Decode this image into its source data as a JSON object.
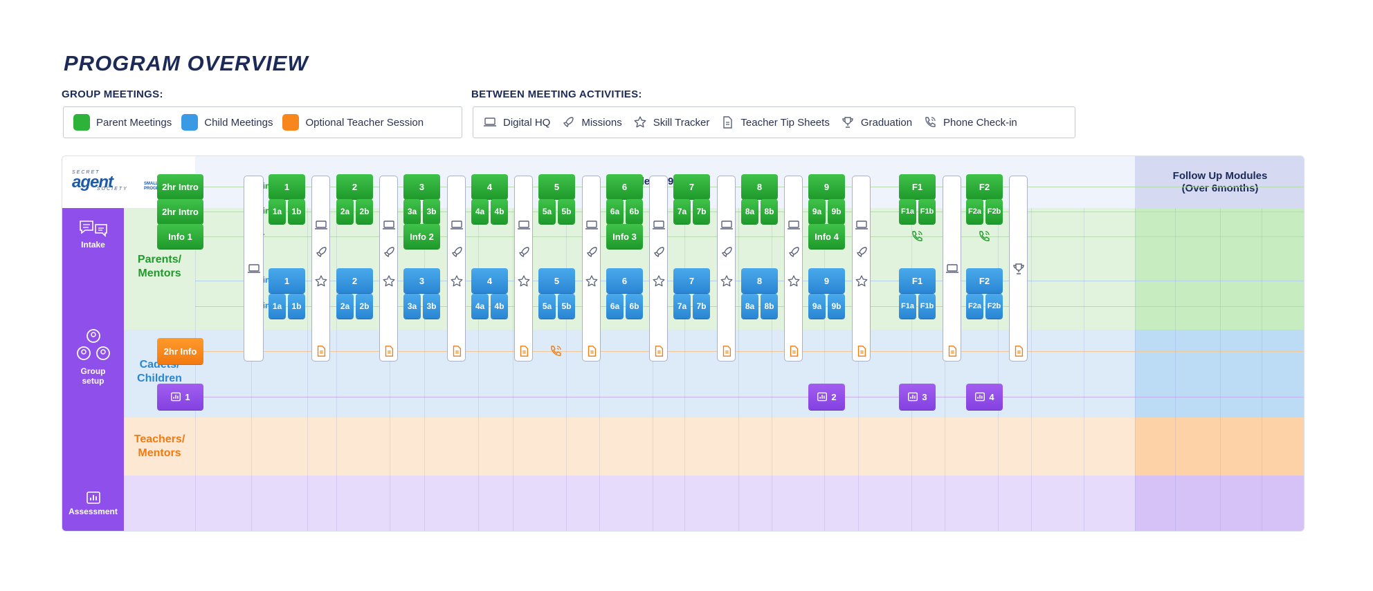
{
  "title": "PROGRAM OVERVIEW",
  "legend": {
    "group_heading": "GROUP MEETINGS:",
    "between_heading": "BETWEEN MEETING ACTIVITIES:",
    "group_items": [
      {
        "label": "Parent Meetings",
        "color": "#2db33a"
      },
      {
        "label": "Child Meetings",
        "color": "#3a9be4"
      },
      {
        "label": "Optional Teacher Session",
        "color": "#f7861c"
      }
    ],
    "activity_items": [
      {
        "label": "Digital HQ",
        "icon": "laptop-icon"
      },
      {
        "label": "Missions",
        "icon": "rocket-icon"
      },
      {
        "label": "Skill Tracker",
        "icon": "star-icon"
      },
      {
        "label": "Teacher Tip Sheets",
        "icon": "document-icon"
      },
      {
        "label": "Graduation",
        "icon": "trophy-icon"
      },
      {
        "label": "Phone Check-in",
        "icon": "phone-icon"
      }
    ]
  },
  "header": {
    "logo_line1": "SECRET",
    "logo_line2": "agent",
    "logo_line3": "SOCIETY",
    "logo_tag": "SMALL GROUP PROGRAM",
    "modules_label": "Modules 1-9",
    "followup_label_1": "Follow Up Modules",
    "followup_label_2": "(Over 6months)"
  },
  "side": {
    "intake": "Intake",
    "group_setup_1": "Group",
    "group_setup_2": "setup",
    "assessment": "Assessment"
  },
  "rows": {
    "parents_1": "Parents/",
    "parents_2": "Mentors",
    "cadets_1": "Cadets/",
    "cadets_2": "Children",
    "teachers_1": "Teachers/",
    "teachers_2": "Mentors"
  },
  "durations": {
    "p1": "45min",
    "p2": "30min",
    "p3": "2hr",
    "c1": "90min",
    "c2": "45min"
  },
  "intake": {
    "p1": "2hr Intro",
    "p2": "2hr Intro",
    "p3": "Info 1",
    "teacher": "2hr Info",
    "assessment": "1"
  },
  "modules": [
    {
      "main": "1",
      "a": "1a",
      "b": "1b",
      "info": ""
    },
    {
      "main": "2",
      "a": "2a",
      "b": "2b",
      "info": ""
    },
    {
      "main": "3",
      "a": "3a",
      "b": "3b",
      "info": "Info 2"
    },
    {
      "main": "4",
      "a": "4a",
      "b": "4b",
      "info": ""
    },
    {
      "main": "5",
      "a": "5a",
      "b": "5b",
      "info": ""
    },
    {
      "main": "6",
      "a": "6a",
      "b": "6b",
      "info": "Info 3"
    },
    {
      "main": "7",
      "a": "7a",
      "b": "7b",
      "info": ""
    },
    {
      "main": "8",
      "a": "8a",
      "b": "8b",
      "info": ""
    },
    {
      "main": "9",
      "a": "9a",
      "b": "9b",
      "info": "Info 4"
    }
  ],
  "followups": [
    {
      "main": "F1",
      "a": "F1a",
      "b": "F1b",
      "assessment": "3"
    },
    {
      "main": "F2",
      "a": "F2a",
      "b": "F2b",
      "assessment": "4"
    }
  ],
  "assessment_9": "2",
  "colors": {
    "parents_band": "#e2f3dd",
    "cadets_band": "#ddebf8",
    "teachers_band": "#fde9d3",
    "assessment_band": "#e6dbfa",
    "side_purple": "#8f4fea",
    "header_band": "#eef3fc",
    "followup_header": "#d6d9f2"
  }
}
